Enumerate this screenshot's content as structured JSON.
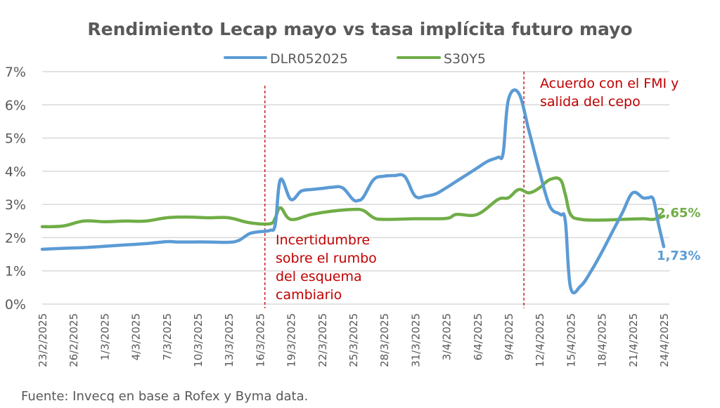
{
  "chart_data": {
    "type": "line",
    "title": "Rendimiento Lecap mayo vs tasa implícita futuro mayo",
    "xlabel": "",
    "ylabel": "",
    "ylim": [
      0,
      7
    ],
    "yticks": [
      "0%",
      "1%",
      "2%",
      "3%",
      "4%",
      "5%",
      "6%",
      "7%"
    ],
    "ytick_values": [
      0,
      1,
      2,
      3,
      4,
      5,
      6,
      7
    ],
    "grid": true,
    "legend_position": "top-center",
    "x_day_range": [
      0,
      60
    ],
    "xtick_labels": [
      "23/2/2025",
      "26/2/2025",
      "1/3/2025",
      "4/3/2025",
      "7/3/2025",
      "10/3/2025",
      "13/3/2025",
      "16/3/2025",
      "19/3/2025",
      "22/3/2025",
      "25/3/2025",
      "28/3/2025",
      "31/3/2025",
      "3/4/2025",
      "6/4/2025",
      "9/4/2025",
      "12/4/2025",
      "15/4/2025",
      "18/4/2025",
      "21/4/2025",
      "24/4/2025"
    ],
    "xtick_days": [
      0,
      3,
      6,
      9,
      12,
      15,
      18,
      21,
      24,
      27,
      30,
      33,
      36,
      39,
      42,
      45,
      48,
      51,
      54,
      57,
      60
    ],
    "series": [
      {
        "name": "DLR052025",
        "color": "#5b9bd5",
        "x": [
          0,
          2,
          4,
          6,
          8,
          10,
          12,
          13,
          14,
          16,
          18,
          19,
          20,
          21,
          22,
          22.5,
          23,
          24,
          25,
          26,
          27,
          28,
          29,
          30,
          30.5,
          31,
          32,
          33,
          34,
          35,
          36,
          37,
          38,
          39,
          40,
          41,
          42,
          43,
          44,
          44.5,
          45,
          46,
          47,
          48,
          49,
          50,
          50.5,
          51,
          52,
          53,
          54,
          55,
          56,
          57,
          58,
          58.5,
          59,
          59.5,
          60
        ],
        "y": [
          1.65,
          1.68,
          1.7,
          1.74,
          1.78,
          1.82,
          1.88,
          1.87,
          1.87,
          1.87,
          1.86,
          1.92,
          2.12,
          2.18,
          2.22,
          2.4,
          3.75,
          3.15,
          3.4,
          3.45,
          3.48,
          3.52,
          3.5,
          3.15,
          3.12,
          3.22,
          3.75,
          3.85,
          3.87,
          3.84,
          3.25,
          3.25,
          3.32,
          3.5,
          3.7,
          3.9,
          4.1,
          4.3,
          4.42,
          4.55,
          6.15,
          6.35,
          5.2,
          4.0,
          2.95,
          2.7,
          2.5,
          0.5,
          0.55,
          1.0,
          1.55,
          2.15,
          2.75,
          3.35,
          3.2,
          3.2,
          3.15,
          2.4,
          1.73
        ]
      },
      {
        "name": "S30Y5",
        "color": "#70ad47",
        "x": [
          0,
          2,
          4,
          6,
          8,
          10,
          12,
          14,
          16,
          18,
          20,
          22,
          22.5,
          23,
          24,
          26,
          28,
          30,
          31,
          32,
          33,
          36,
          39,
          40,
          42,
          44,
          45,
          46,
          47,
          48,
          49,
          50,
          50.5,
          51,
          52,
          54,
          56,
          58,
          59,
          60
        ],
        "y": [
          2.33,
          2.35,
          2.5,
          2.48,
          2.5,
          2.5,
          2.6,
          2.62,
          2.6,
          2.6,
          2.45,
          2.42,
          2.6,
          2.9,
          2.55,
          2.7,
          2.8,
          2.85,
          2.82,
          2.6,
          2.55,
          2.57,
          2.58,
          2.7,
          2.7,
          3.15,
          3.2,
          3.45,
          3.35,
          3.5,
          3.75,
          3.75,
          3.3,
          2.7,
          2.55,
          2.53,
          2.55,
          2.57,
          2.55,
          2.65
        ]
      }
    ],
    "annotations": [
      {
        "day": 21.5,
        "lines": [
          "Incertidumbre",
          "sobre el rumbo",
          "del esquema",
          "cambiario"
        ]
      },
      {
        "day": 46.5,
        "lines": [
          "Acuerdo con el FMI y",
          "salida del cepo"
        ]
      }
    ],
    "end_labels": [
      {
        "series": "S30Y5",
        "text": "2,65%"
      },
      {
        "series": "DLR052025",
        "text": "1,73%"
      }
    ],
    "source": "Fuente: Invecq en base a Rofex y Byma data."
  }
}
